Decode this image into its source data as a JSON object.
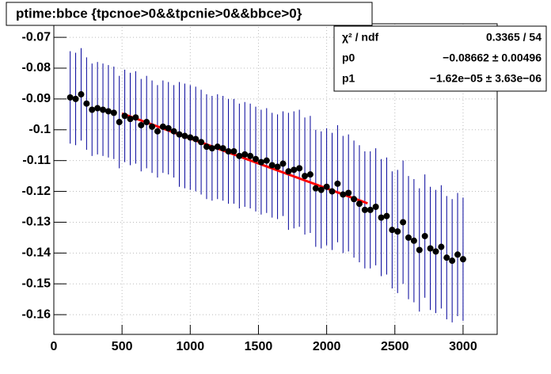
{
  "chart_data": {
    "type": "profile",
    "title": "ptime:bbce {tpcnoe>0&&tpcnie>0&&bbce>0}",
    "x": [
      120,
      160,
      200,
      240,
      280,
      320,
      360,
      400,
      440,
      480,
      520,
      560,
      600,
      640,
      680,
      720,
      760,
      800,
      840,
      880,
      920,
      960,
      1000,
      1040,
      1080,
      1120,
      1160,
      1200,
      1240,
      1280,
      1320,
      1360,
      1400,
      1440,
      1480,
      1520,
      1560,
      1600,
      1640,
      1680,
      1720,
      1760,
      1800,
      1840,
      1880,
      1920,
      1960,
      2000,
      2040,
      2080,
      2120,
      2160,
      2200,
      2240,
      2280,
      2320,
      2360,
      2400,
      2440,
      2480,
      2520,
      2560,
      2600,
      2640,
      2680,
      2720,
      2760,
      2800,
      2840,
      2880,
      2920,
      2960,
      3000
    ],
    "series": [
      {
        "name": "ptime:bbce",
        "color": "#000000",
        "error_color": "#000099",
        "values": [
          -0.0895,
          -0.09,
          -0.0885,
          -0.0915,
          -0.0935,
          -0.093,
          -0.0935,
          -0.094,
          -0.0945,
          -0.0975,
          -0.0955,
          -0.0965,
          -0.096,
          -0.0985,
          -0.0975,
          -0.099,
          -0.1005,
          -0.099,
          -0.0995,
          -0.1005,
          -0.1015,
          -0.102,
          -0.1025,
          -0.103,
          -0.104,
          -0.1055,
          -0.106,
          -0.1055,
          -0.106,
          -0.107,
          -0.107,
          -0.1085,
          -0.108,
          -0.1085,
          -0.1095,
          -0.1105,
          -0.11,
          -0.1115,
          -0.112,
          -0.111,
          -0.1135,
          -0.113,
          -0.1125,
          -0.115,
          -0.1145,
          -0.119,
          -0.1195,
          -0.1185,
          -0.12,
          -0.1175,
          -0.121,
          -0.1205,
          -0.1225,
          -0.124,
          -0.126,
          -0.126,
          -0.125,
          -0.1285,
          -0.128,
          -0.1325,
          -0.133,
          -0.13,
          -0.135,
          -0.136,
          -0.139,
          -0.1345,
          -0.1385,
          -0.1395,
          -0.138,
          -0.1415,
          -0.1425,
          -0.1405,
          -0.142
        ],
        "errors": [
          0.015,
          0.015,
          0.015,
          0.015,
          0.015,
          0.015,
          0.015,
          0.015,
          0.015,
          0.015,
          0.015,
          0.015,
          0.015,
          0.015,
          0.015,
          0.015,
          0.015,
          0.015,
          0.015,
          0.015,
          0.017,
          0.017,
          0.017,
          0.017,
          0.017,
          0.017,
          0.017,
          0.017,
          0.017,
          0.017,
          0.017,
          0.017,
          0.017,
          0.017,
          0.017,
          0.017,
          0.017,
          0.017,
          0.017,
          0.017,
          0.019,
          0.019,
          0.019,
          0.019,
          0.019,
          0.019,
          0.019,
          0.019,
          0.019,
          0.019,
          0.019,
          0.019,
          0.019,
          0.019,
          0.019,
          0.019,
          0.019,
          0.019,
          0.019,
          0.019,
          0.02,
          0.02,
          0.02,
          0.02,
          0.02,
          0.02,
          0.02,
          0.02,
          0.02,
          0.02,
          0.02,
          0.02,
          0.02
        ]
      }
    ],
    "fit": {
      "color": "#ff0000",
      "intercept": -0.08662,
      "slope": -1.62e-05,
      "xrange": [
        500,
        2300
      ]
    },
    "stats": [
      [
        "χ² / ndf",
        "0.3365 / 54"
      ],
      [
        "p0",
        "−0.08662 ± 0.00496"
      ],
      [
        "p1",
        "−1.62e−05 ± 3.63e−06"
      ]
    ],
    "xlim": [
      0,
      3250
    ],
    "ylim": [
      -0.1664,
      -0.0656
    ],
    "xticks": [
      0,
      500,
      1000,
      1500,
      2000,
      2500,
      3000
    ],
    "yticks": [
      -0.07,
      -0.08,
      -0.09,
      -0.1,
      -0.11,
      -0.12,
      -0.13,
      -0.14,
      -0.15,
      -0.16
    ],
    "grid": true
  }
}
